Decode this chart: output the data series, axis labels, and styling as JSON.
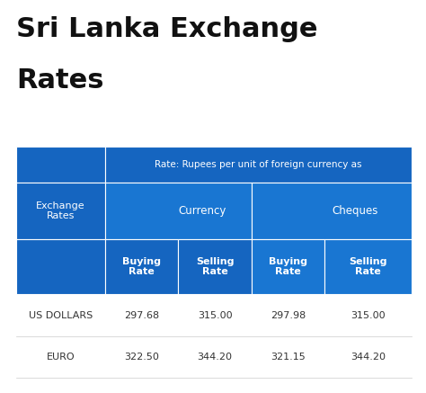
{
  "title_line1": "Sri Lanka Exchange",
  "title_line2": "Rates",
  "title_fontsize": 22,
  "title_fontweight": "bold",
  "title_color": "#111111",
  "bg_color": "#ffffff",
  "table_header_bg": "#1565c0",
  "table_subheader_bg": "#1976d2",
  "table_data_bg": "#ffffff",
  "table_text_color": "#ffffff",
  "table_data_text_color": "#333333",
  "header_row0_text": "Rate: Rupees per unit of foreign currency as",
  "col0_header": "Exchange\nRates",
  "col1_header": "Currency",
  "col2_header": "Cheques",
  "subheaders": [
    "Buying\nRate",
    "Selling\nRate",
    "Buying\nRate",
    "Selling\nRate"
  ],
  "rows": [
    [
      "US DOLLARS",
      "297.68",
      "315.00",
      "297.98",
      "315.00"
    ],
    [
      "EURO",
      "322.50",
      "344.20",
      "321.15",
      "344.20"
    ]
  ],
  "figsize": [
    4.74,
    4.37
  ],
  "dpi": 100
}
